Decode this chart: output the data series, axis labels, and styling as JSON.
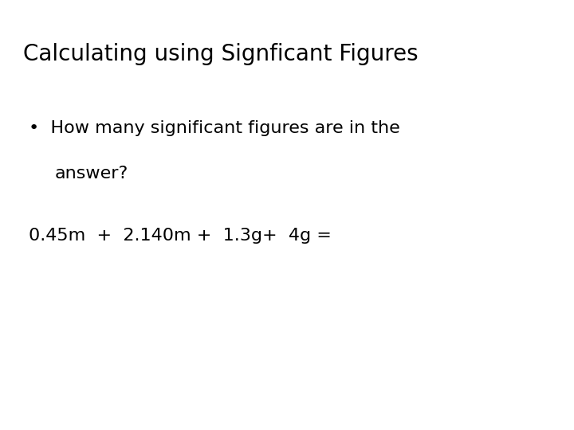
{
  "title": "Calculating using Signficant Figures",
  "bullet_line1": "How many significant figures are in the",
  "bullet_line2": "answer?",
  "equation": "0.45m  +  2.140m +  1.3g+  4g =",
  "bg_color": "#ffffff",
  "text_color": "#000000",
  "title_fontsize": 20,
  "body_fontsize": 16,
  "eq_fontsize": 16,
  "font_family": "DejaVu Sans"
}
